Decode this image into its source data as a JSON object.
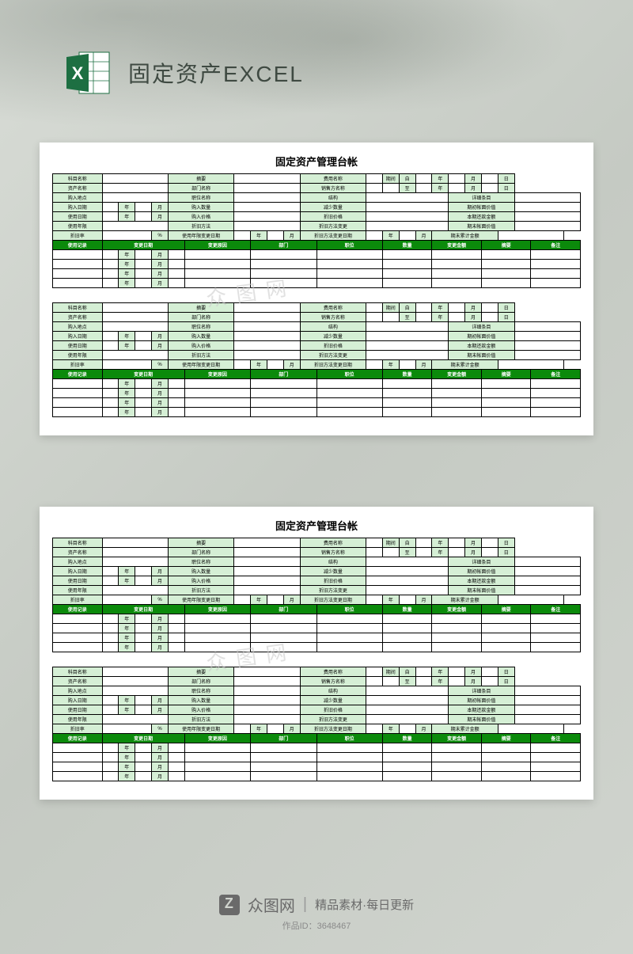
{
  "header": {
    "title": "固定资产EXCEL"
  },
  "sheet": {
    "title": "固定资产管理台帐"
  },
  "colors": {
    "label_bg": "#d5efd5",
    "header_bg": "#0b8a0b",
    "header_fg": "#ffffff",
    "page_bg": "#ffffff",
    "body_bg": "#d0d4ce"
  },
  "info_rows": [
    {
      "c1": "科目名称",
      "c2": "摘要",
      "c3": "费用名称",
      "right": [
        {
          "t": "期间",
          "span": 1
        },
        {
          "t": "自",
          "span": 1
        },
        {
          "t": "",
          "span": 1
        },
        {
          "t": "年",
          "span": 1
        },
        {
          "t": "",
          "span": 1
        },
        {
          "t": "月",
          "span": 1
        },
        {
          "t": "",
          "span": 1
        },
        {
          "t": "日",
          "span": 1
        }
      ]
    },
    {
      "c1": "资产名称",
      "c2": "部门名称",
      "c3": "销售方名称",
      "right": [
        {
          "t": "",
          "span": 1
        },
        {
          "t": "至",
          "span": 1
        },
        {
          "t": "",
          "span": 1
        },
        {
          "t": "年",
          "span": 1
        },
        {
          "t": "",
          "span": 1
        },
        {
          "t": "月",
          "span": 1
        },
        {
          "t": "",
          "span": 1
        },
        {
          "t": "日",
          "span": 1
        }
      ]
    },
    {
      "c1": "购入地点",
      "c2": "职位名称",
      "c3": "结构",
      "right": [
        {
          "t": "详细条目",
          "span": 8,
          "lbl": true
        }
      ]
    },
    {
      "c1": "购入日期",
      "mid": [
        {
          "t": "",
          "span": 1
        },
        {
          "t": "年",
          "span": 1,
          "lbl": true
        },
        {
          "t": "",
          "span": 1
        },
        {
          "t": "月",
          "span": 1,
          "lbl": true
        }
      ],
      "c2": "购入数量",
      "c3": "减少数量",
      "right": [
        {
          "t": "期初帐面价值",
          "span": 8,
          "lbl": true
        }
      ]
    },
    {
      "c1": "使用日期",
      "mid": [
        {
          "t": "",
          "span": 1
        },
        {
          "t": "年",
          "span": 1,
          "lbl": true
        },
        {
          "t": "",
          "span": 1
        },
        {
          "t": "月",
          "span": 1,
          "lbl": true
        }
      ],
      "c2": "购入价格",
      "c3": "折旧价格",
      "right": [
        {
          "t": "本期还款金额",
          "span": 8,
          "lbl": true
        }
      ]
    },
    {
      "c1": "使用年限",
      "mid": [
        {
          "t": "",
          "span": 4
        }
      ],
      "c2": "折旧方法",
      "c3": "折旧方法变更",
      "right": [
        {
          "t": "期末帐面价值",
          "span": 8,
          "lbl": true
        }
      ]
    },
    {
      "c1": "折旧率",
      "mid": [
        {
          "t": "",
          "span": 3
        },
        {
          "t": "%",
          "span": 1,
          "lbl": true
        }
      ],
      "c2": "使用年限变更日期",
      "c2extra": [
        {
          "t": "",
          "span": 1
        },
        {
          "t": "年",
          "span": 1,
          "lbl": true
        },
        {
          "t": "",
          "span": 1
        },
        {
          "t": "月",
          "span": 1,
          "lbl": true
        }
      ],
      "c3": "折旧方法变更日期",
      "c3extra": [
        {
          "t": "",
          "span": 1
        },
        {
          "t": "年",
          "span": 1,
          "lbl": true
        },
        {
          "t": "",
          "span": 1
        },
        {
          "t": "月",
          "span": 1,
          "lbl": true
        }
      ],
      "right": [
        {
          "t": "期末累计金额",
          "span": 8,
          "lbl": true
        }
      ]
    }
  ],
  "record_headers": [
    "使用记录",
    "变更日期",
    "变更原因",
    "部门",
    "职位",
    "数量",
    "变更金额",
    "摘要",
    "备注"
  ],
  "record_rows": [
    [
      {
        "t": ""
      },
      {
        "t": ""
      },
      {
        "t": "年"
      },
      {
        "t": ""
      },
      {
        "t": "月"
      },
      {
        "t": ""
      },
      {
        "t": ""
      },
      {
        "t": ""
      },
      {
        "t": ""
      },
      {
        "t": ""
      },
      {
        "t": ""
      },
      {
        "t": ""
      }
    ],
    [
      {
        "t": ""
      },
      {
        "t": ""
      },
      {
        "t": "年"
      },
      {
        "t": ""
      },
      {
        "t": "月"
      },
      {
        "t": ""
      },
      {
        "t": ""
      },
      {
        "t": ""
      },
      {
        "t": ""
      },
      {
        "t": ""
      },
      {
        "t": ""
      },
      {
        "t": ""
      }
    ],
    [
      {
        "t": ""
      },
      {
        "t": ""
      },
      {
        "t": "年"
      },
      {
        "t": ""
      },
      {
        "t": "月"
      },
      {
        "t": ""
      },
      {
        "t": ""
      },
      {
        "t": ""
      },
      {
        "t": ""
      },
      {
        "t": ""
      },
      {
        "t": ""
      },
      {
        "t": ""
      }
    ],
    [
      {
        "t": ""
      },
      {
        "t": ""
      },
      {
        "t": "年"
      },
      {
        "t": ""
      },
      {
        "t": "月"
      },
      {
        "t": ""
      },
      {
        "t": ""
      },
      {
        "t": ""
      },
      {
        "t": ""
      },
      {
        "t": ""
      },
      {
        "t": ""
      },
      {
        "t": ""
      }
    ]
  ],
  "watermark": "众图网",
  "footer": {
    "brand": "众图网",
    "tagline": "精品素材·每日更新",
    "id_label": "作品ID：",
    "id_value": "3648467"
  }
}
